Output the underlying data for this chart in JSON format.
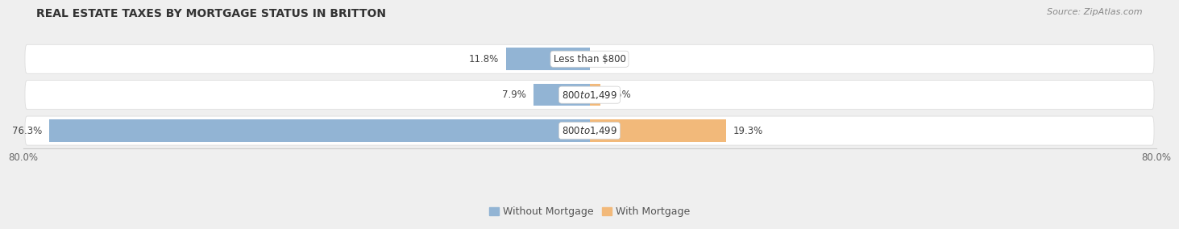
{
  "title": "REAL ESTATE TAXES BY MORTGAGE STATUS IN BRITTON",
  "source": "Source: ZipAtlas.com",
  "bars": [
    {
      "label": "Less than $800",
      "without_mortgage": 11.8,
      "with_mortgage": 0.0
    },
    {
      "label": "$800 to $1,499",
      "without_mortgage": 7.9,
      "with_mortgage": 1.5
    },
    {
      "label": "$800 to $1,499",
      "without_mortgage": 76.3,
      "with_mortgage": 19.3
    }
  ],
  "color_without": "#92b4d4",
  "color_with": "#f2b97a",
  "xlim_left": -80.0,
  "xlim_right": 80.0,
  "axis_label_left": "80.0%",
  "axis_label_right": "80.0%",
  "bg_color": "#efefef",
  "row_bg_color": "#f8f8f8",
  "bar_height": 0.62,
  "title_fontsize": 10,
  "source_fontsize": 8,
  "label_fontsize": 8.5,
  "pct_fontsize": 8.5,
  "tick_fontsize": 8.5,
  "legend_fontsize": 9
}
